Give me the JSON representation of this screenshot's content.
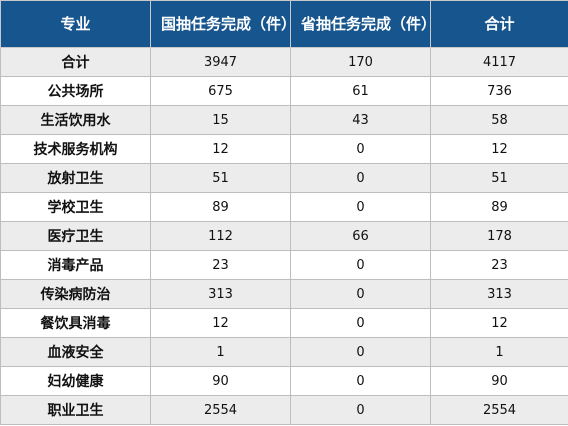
{
  "header": {
    "col1": "专业",
    "col2": "国抽任务完成（件）",
    "col3": "省抽任务完成（件）",
    "col4": "合计"
  },
  "rows": [
    {
      "name": "合计",
      "national": "3947",
      "provincial": "170",
      "total": "4117"
    },
    {
      "name": "公共场所",
      "national": "675",
      "provincial": "61",
      "total": "736"
    },
    {
      "name": "生活饮用水",
      "national": "15",
      "provincial": "43",
      "total": "58"
    },
    {
      "name": "技术服务机构",
      "national": "12",
      "provincial": "0",
      "total": "12"
    },
    {
      "name": "放射卫生",
      "national": "51",
      "provincial": "0",
      "total": "51"
    },
    {
      "name": "学校卫生",
      "national": "89",
      "provincial": "0",
      "total": "89"
    },
    {
      "name": "医疗卫生",
      "national": "112",
      "provincial": "66",
      "total": "178"
    },
    {
      "name": "消毒产品",
      "national": "23",
      "provincial": "0",
      "total": "23"
    },
    {
      "name": "传染病防治",
      "national": "313",
      "provincial": "0",
      "total": "313"
    },
    {
      "name": "餐饮具消毒",
      "national": "12",
      "provincial": "0",
      "total": "12"
    },
    {
      "name": "血液安全",
      "national": "1",
      "provincial": "0",
      "total": "1"
    },
    {
      "name": "妇幼健康",
      "national": "90",
      "provincial": "0",
      "total": "90"
    },
    {
      "name": "职业卫生",
      "national": "2554",
      "provincial": "0",
      "total": "2554"
    }
  ],
  "colors": {
    "header_bg": "#17558e",
    "header_text": "#ffffff",
    "row_alt": "#ececec",
    "row_plain": "#ffffff"
  }
}
